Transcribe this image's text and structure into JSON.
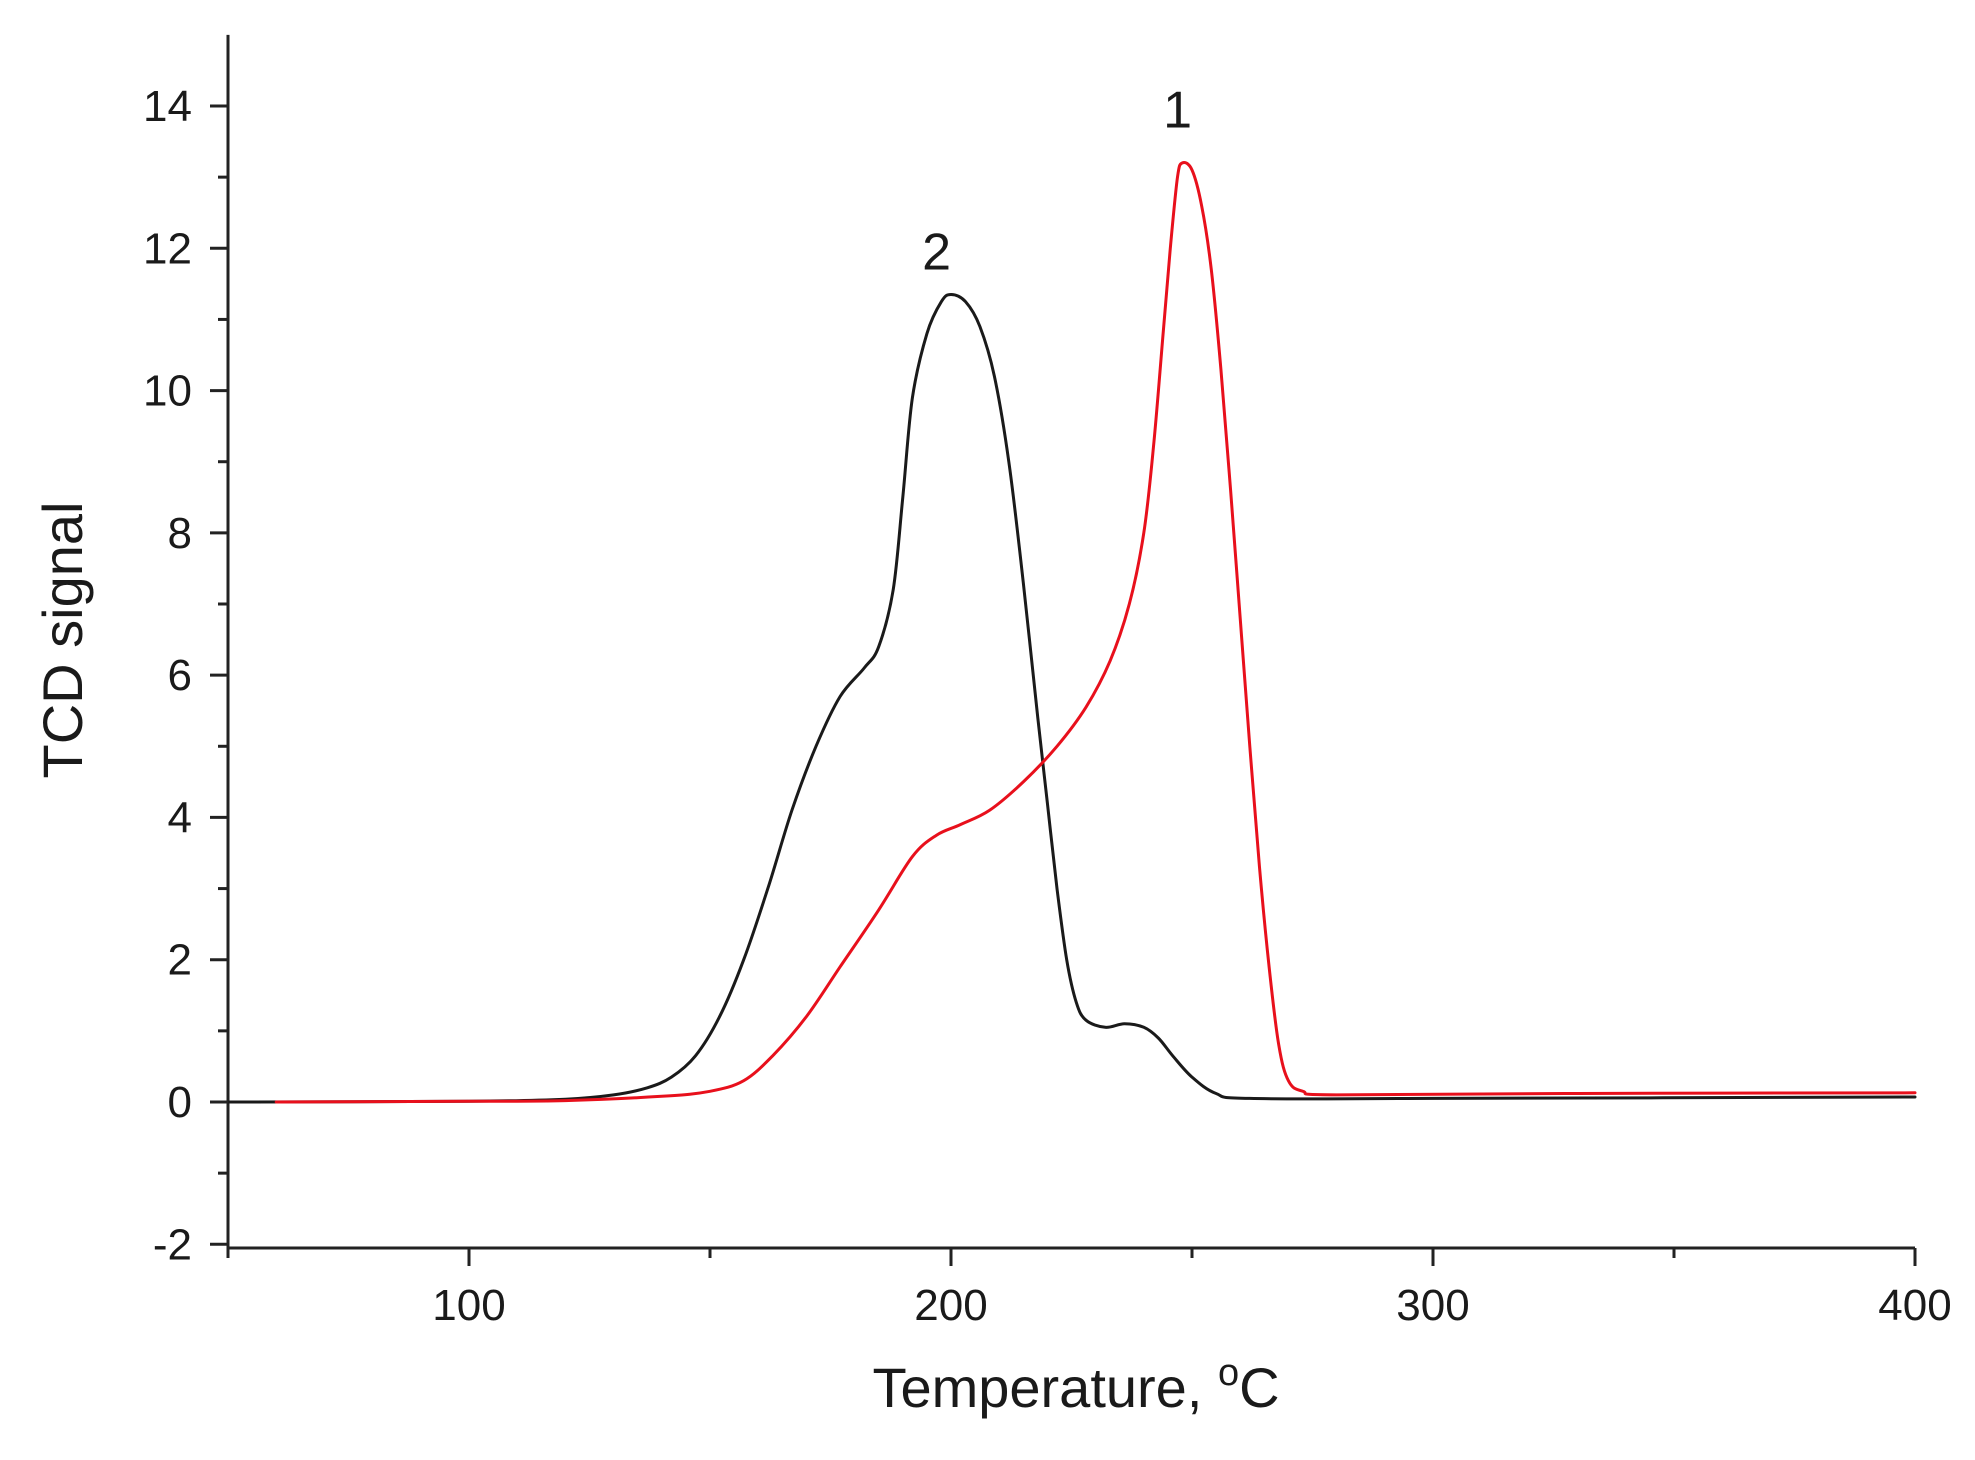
{
  "chart_data": {
    "type": "line",
    "title": "",
    "xlabel": "Temperature, ",
    "xlabel_sup": "o",
    "xlabel_unit": "C",
    "ylabel": "TCD signal",
    "xlim": [
      50,
      400
    ],
    "ylim": [
      -2,
      15
    ],
    "x_ticks": [
      100,
      200,
      300,
      400
    ],
    "x_minor_ticks": [
      50,
      150,
      250,
      350
    ],
    "y_ticks": [
      -2,
      0,
      2,
      4,
      6,
      8,
      10,
      12,
      14
    ],
    "y_minor_ticks": [
      -1,
      1,
      3,
      5,
      7,
      9,
      11,
      13
    ],
    "grid": false,
    "legend": "none",
    "series": [
      {
        "name": "1",
        "color": "#e8101c",
        "label_at": [
          247,
          13.7
        ],
        "points": [
          [
            60,
            0
          ],
          [
            100,
            0.01
          ],
          [
            120,
            0.02
          ],
          [
            140,
            0.08
          ],
          [
            150,
            0.15
          ],
          [
            157,
            0.3
          ],
          [
            163,
            0.65
          ],
          [
            170,
            1.2
          ],
          [
            177,
            1.9
          ],
          [
            185,
            2.7
          ],
          [
            192,
            3.45
          ],
          [
            197,
            3.75
          ],
          [
            202,
            3.9
          ],
          [
            208,
            4.1
          ],
          [
            215,
            4.5
          ],
          [
            222,
            5.0
          ],
          [
            228,
            5.55
          ],
          [
            233,
            6.2
          ],
          [
            237,
            7.0
          ],
          [
            240,
            8.0
          ],
          [
            242,
            9.2
          ],
          [
            244,
            10.8
          ],
          [
            245.5,
            12.0
          ],
          [
            247,
            13.0
          ],
          [
            248,
            13.2
          ],
          [
            250,
            13.1
          ],
          [
            252,
            12.6
          ],
          [
            254,
            11.7
          ],
          [
            256,
            10.3
          ],
          [
            258,
            8.6
          ],
          [
            260,
            6.8
          ],
          [
            262,
            5.0
          ],
          [
            264,
            3.3
          ],
          [
            266,
            1.9
          ],
          [
            268,
            0.8
          ],
          [
            270,
            0.3
          ],
          [
            273,
            0.15
          ],
          [
            280,
            0.1
          ],
          [
            330,
            0.12
          ],
          [
            400,
            0.13
          ]
        ]
      },
      {
        "name": "2",
        "color": "#1a1a1a",
        "label_at": [
          197,
          11.7
        ],
        "points": [
          [
            50,
            0
          ],
          [
            100,
            0.01
          ],
          [
            120,
            0.04
          ],
          [
            130,
            0.1
          ],
          [
            137,
            0.2
          ],
          [
            142,
            0.35
          ],
          [
            147,
            0.65
          ],
          [
            152,
            1.2
          ],
          [
            157,
            2.0
          ],
          [
            162,
            3.0
          ],
          [
            167,
            4.1
          ],
          [
            172,
            5.0
          ],
          [
            177,
            5.7
          ],
          [
            182,
            6.1
          ],
          [
            185,
            6.4
          ],
          [
            188,
            7.2
          ],
          [
            190,
            8.5
          ],
          [
            192,
            9.9
          ],
          [
            195,
            10.8
          ],
          [
            198,
            11.25
          ],
          [
            200,
            11.35
          ],
          [
            203,
            11.25
          ],
          [
            206,
            10.9
          ],
          [
            209,
            10.2
          ],
          [
            212,
            9.0
          ],
          [
            215,
            7.3
          ],
          [
            218,
            5.4
          ],
          [
            220,
            4.2
          ],
          [
            222,
            3.0
          ],
          [
            224,
            2.0
          ],
          [
            226,
            1.4
          ],
          [
            228,
            1.15
          ],
          [
            232,
            1.05
          ],
          [
            236,
            1.1
          ],
          [
            240,
            1.05
          ],
          [
            243,
            0.9
          ],
          [
            246,
            0.65
          ],
          [
            250,
            0.35
          ],
          [
            255,
            0.12
          ],
          [
            262,
            0.05
          ],
          [
            300,
            0.05
          ],
          [
            400,
            0.07
          ]
        ]
      }
    ]
  }
}
